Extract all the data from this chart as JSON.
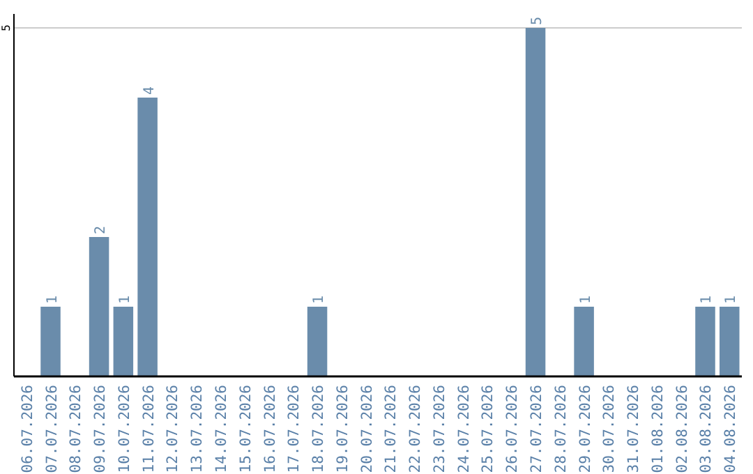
{
  "chart_data": {
    "type": "bar",
    "categories": [
      "06.07.2026",
      "07.07.2026",
      "08.07.2026",
      "09.07.2026",
      "10.07.2026",
      "11.07.2026",
      "12.07.2026",
      "13.07.2026",
      "14.07.2026",
      "15.07.2026",
      "16.07.2026",
      "17.07.2026",
      "18.07.2026",
      "19.07.2026",
      "20.07.2026",
      "21.07.2026",
      "22.07.2026",
      "23.07.2026",
      "24.07.2026",
      "25.07.2026",
      "26.07.2026",
      "27.07.2026",
      "28.07.2026",
      "29.07.2026",
      "30.07.2026",
      "31.07.2026",
      "01.08.2026",
      "02.08.2026",
      "03.08.2026",
      "04.08.2026"
    ],
    "values": [
      0,
      1,
      0,
      2,
      1,
      4,
      0,
      0,
      0,
      0,
      0,
      0,
      1,
      0,
      0,
      0,
      0,
      0,
      0,
      0,
      0,
      5,
      0,
      1,
      0,
      0,
      0,
      0,
      1,
      1
    ],
    "value_labels": [
      null,
      "1",
      null,
      "2",
      "1",
      "4",
      null,
      null,
      null,
      null,
      null,
      null,
      "1",
      null,
      null,
      null,
      null,
      null,
      null,
      null,
      null,
      "5",
      null,
      "1",
      null,
      null,
      null,
      null,
      "1",
      "1"
    ],
    "color": "#6a8cab",
    "ylim": [
      0,
      5.2
    ],
    "yticks": [
      5
    ],
    "grid": "y"
  }
}
